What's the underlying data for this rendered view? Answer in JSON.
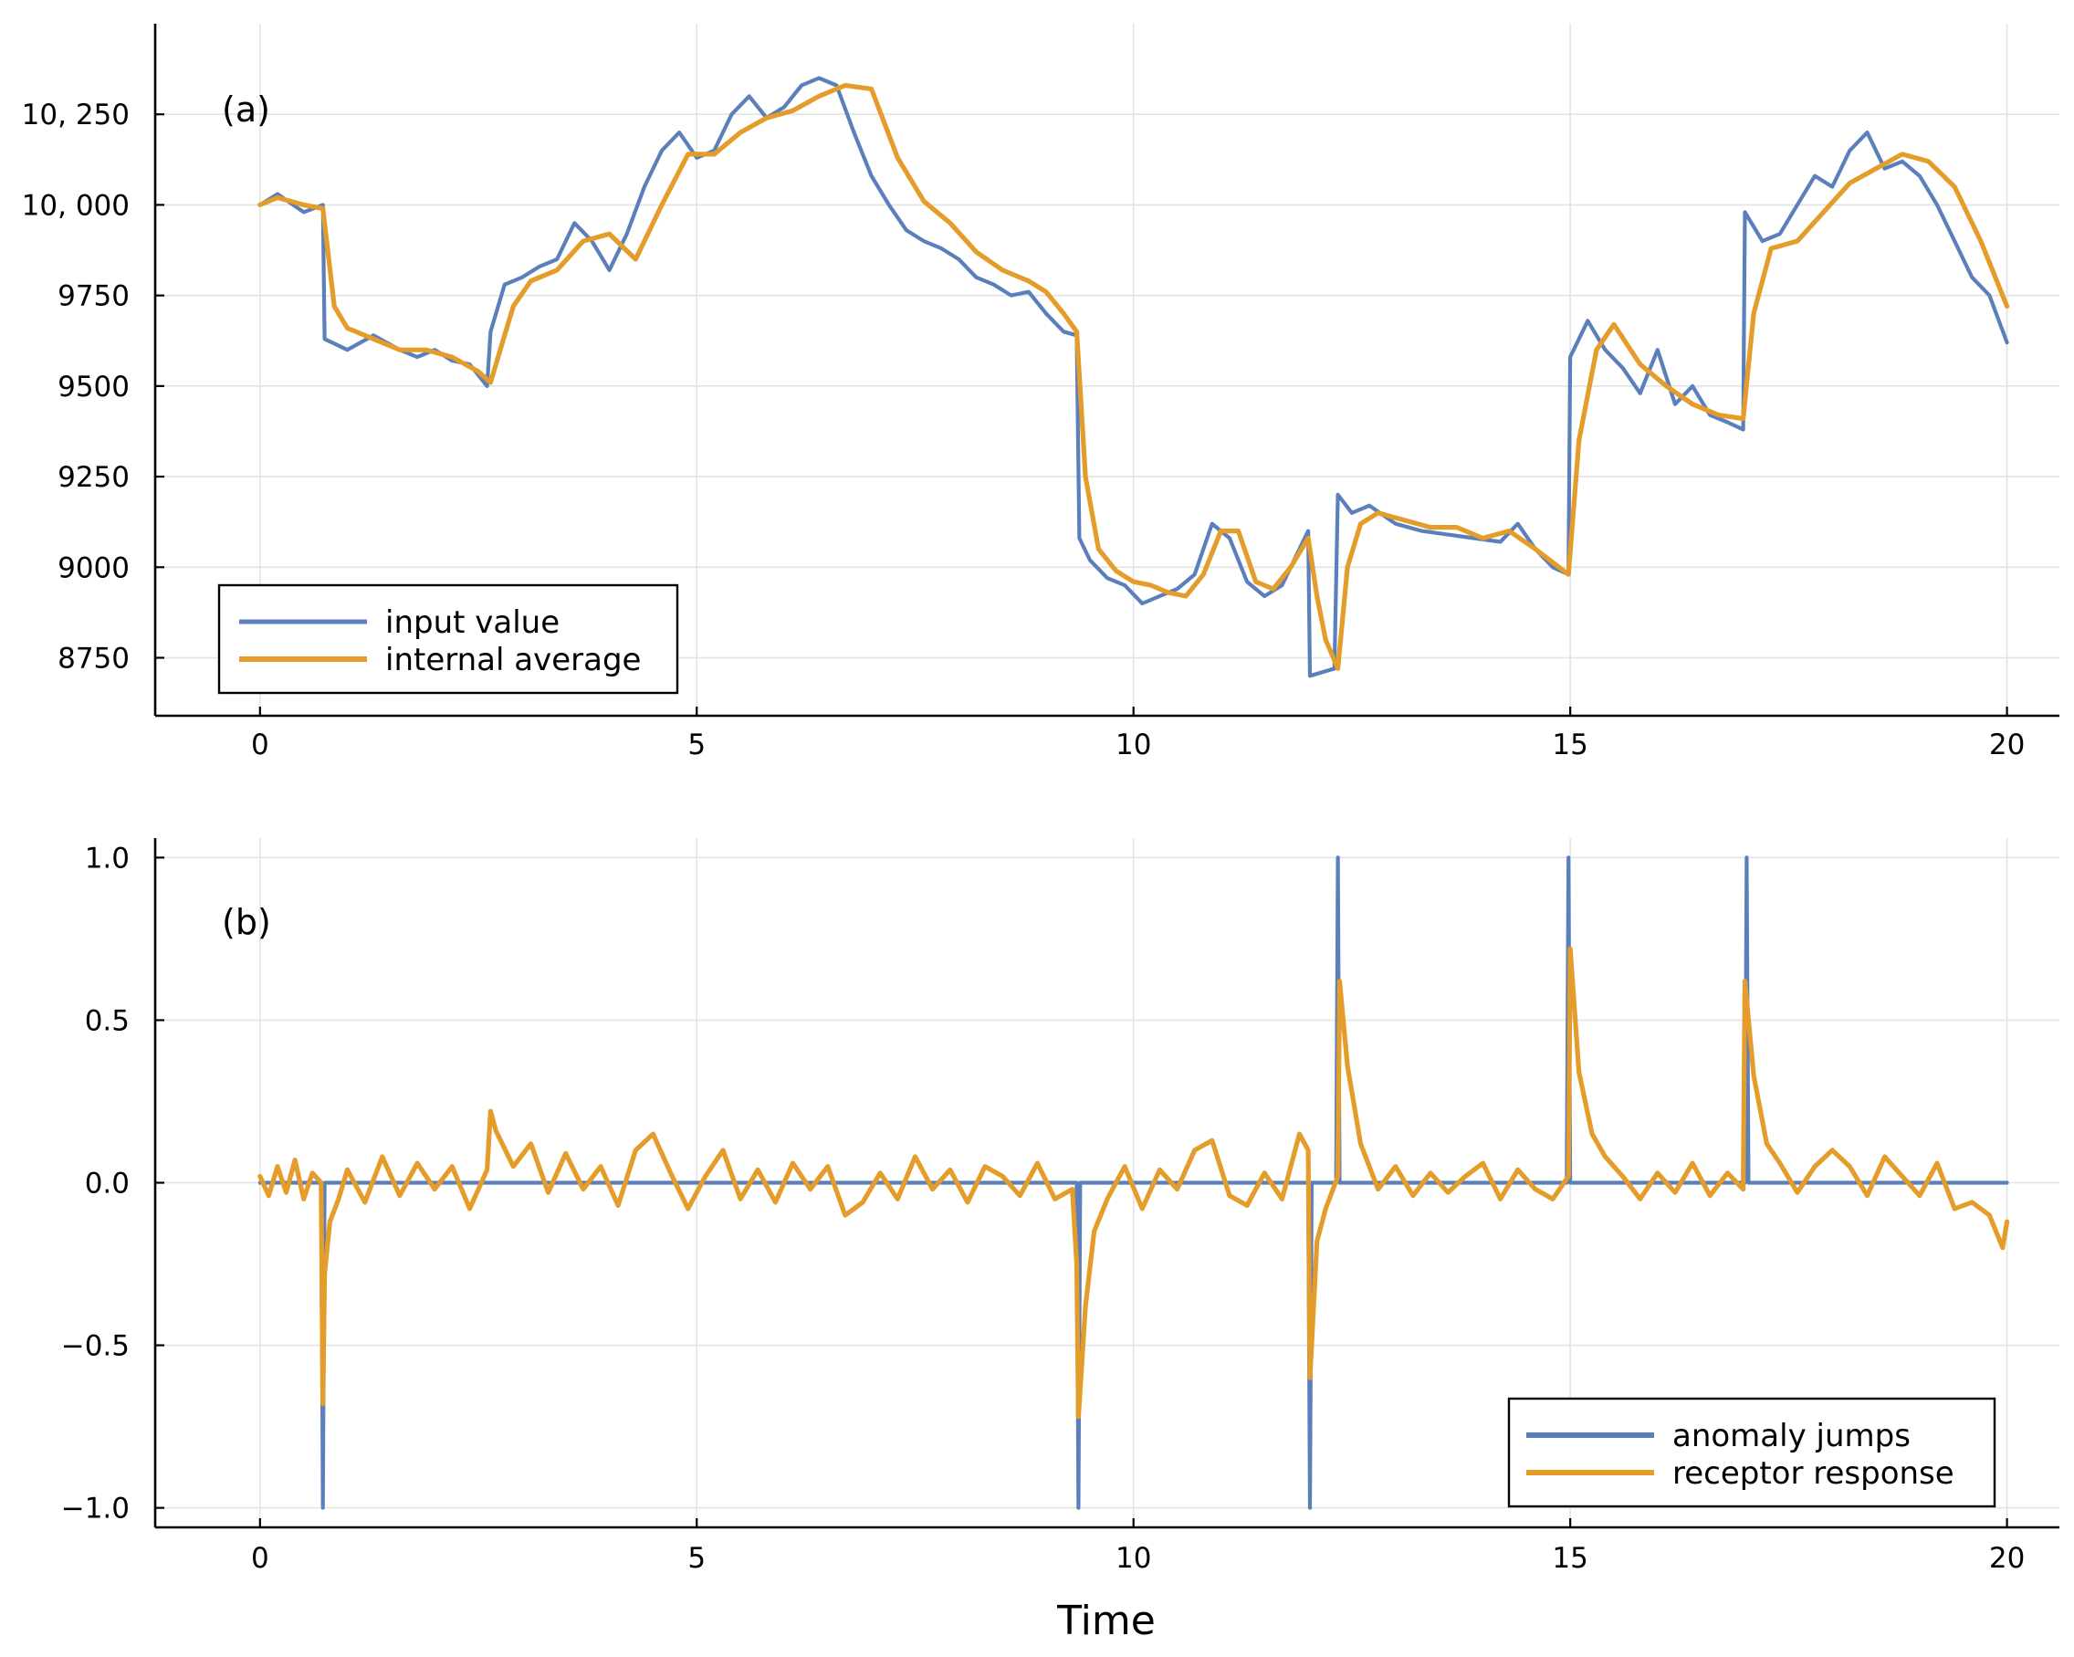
{
  "xlabel": "Time",
  "colors": {
    "blue": "#5b7fbb",
    "orange": "#e49c2a"
  },
  "chart_data": [
    {
      "type": "line",
      "panel_label": "(a)",
      "xlim": [
        -1.2,
        20.6
      ],
      "ylim": [
        8590,
        10500
      ],
      "x_ticks": [
        0,
        5,
        10,
        15,
        20
      ],
      "x_tick_labels": [
        "0",
        "5",
        "10",
        "15",
        "20"
      ],
      "y_ticks": [
        8750,
        9000,
        9250,
        9500,
        9750,
        10000,
        10250
      ],
      "y_tick_labels": [
        "8750",
        "9000",
        "9250",
        "9500",
        "9750",
        "10, 000",
        "10, 250"
      ],
      "legend_position": "bottom-left",
      "series": [
        {
          "name": "input value",
          "color": "#5b7fbb",
          "x": [
            0,
            0.2,
            0.5,
            0.72,
            0.74,
            1.0,
            1.3,
            1.6,
            1.8,
            2.0,
            2.2,
            2.4,
            2.6,
            2.64,
            2.8,
            3.0,
            3.2,
            3.4,
            3.6,
            3.8,
            4.0,
            4.2,
            4.4,
            4.6,
            4.8,
            5.0,
            5.2,
            5.4,
            5.6,
            5.8,
            6.0,
            6.2,
            6.4,
            6.6,
            6.8,
            7.0,
            7.2,
            7.4,
            7.6,
            7.8,
            8.0,
            8.2,
            8.4,
            8.6,
            8.8,
            9.0,
            9.2,
            9.35,
            9.38,
            9.5,
            9.7,
            9.9,
            10.1,
            10.3,
            10.5,
            10.7,
            10.9,
            11.1,
            11.3,
            11.5,
            11.7,
            11.9,
            12.0,
            12.02,
            12.3,
            12.34,
            12.5,
            12.7,
            13.0,
            13.3,
            13.6,
            13.9,
            14.2,
            14.4,
            14.6,
            14.8,
            14.98,
            15.0,
            15.2,
            15.4,
            15.6,
            15.8,
            16.0,
            16.2,
            16.4,
            16.6,
            16.8,
            16.98,
            17.0,
            17.2,
            17.4,
            17.6,
            17.8,
            18.0,
            18.2,
            18.4,
            18.6,
            18.8,
            19.0,
            19.2,
            19.4,
            19.6,
            19.8,
            20.0
          ],
          "y": [
            10000,
            10030,
            9980,
            10000,
            9630,
            9600,
            9640,
            9600,
            9580,
            9600,
            9570,
            9560,
            9500,
            9650,
            9780,
            9800,
            9830,
            9850,
            9950,
            9900,
            9820,
            9920,
            10050,
            10150,
            10200,
            10130,
            10150,
            10250,
            10300,
            10240,
            10270,
            10330,
            10350,
            10330,
            10200,
            10080,
            10000,
            9930,
            9900,
            9880,
            9850,
            9800,
            9780,
            9750,
            9760,
            9700,
            9650,
            9640,
            9080,
            9020,
            8970,
            8950,
            8900,
            8920,
            8940,
            8980,
            9120,
            9080,
            8960,
            8920,
            8950,
            9050,
            9100,
            8700,
            8720,
            9200,
            9150,
            9170,
            9120,
            9100,
            9090,
            9080,
            9070,
            9120,
            9050,
            9000,
            8980,
            9580,
            9680,
            9600,
            9550,
            9480,
            9600,
            9450,
            9500,
            9420,
            9400,
            9380,
            9980,
            9900,
            9920,
            10000,
            10080,
            10050,
            10150,
            10200,
            10100,
            10120,
            10080,
            10000,
            9900,
            9800,
            9750,
            9620
          ]
        },
        {
          "name": "internal average",
          "color": "#e49c2a",
          "x": [
            0,
            0.2,
            0.5,
            0.72,
            0.85,
            1.0,
            1.3,
            1.6,
            1.9,
            2.2,
            2.5,
            2.64,
            2.75,
            2.9,
            3.1,
            3.4,
            3.7,
            4.0,
            4.3,
            4.6,
            4.9,
            5.2,
            5.5,
            5.8,
            6.1,
            6.4,
            6.7,
            7.0,
            7.3,
            7.6,
            7.9,
            8.2,
            8.5,
            8.8,
            9.0,
            9.2,
            9.35,
            9.45,
            9.6,
            9.8,
            10.0,
            10.2,
            10.4,
            10.6,
            10.8,
            11.0,
            11.2,
            11.4,
            11.6,
            11.8,
            12.0,
            12.1,
            12.2,
            12.34,
            12.45,
            12.6,
            12.8,
            13.1,
            13.4,
            13.7,
            14.0,
            14.3,
            14.6,
            14.98,
            15.1,
            15.3,
            15.5,
            15.8,
            16.1,
            16.4,
            16.7,
            16.98,
            17.1,
            17.3,
            17.6,
            17.9,
            18.2,
            18.5,
            18.8,
            19.1,
            19.4,
            19.7,
            20.0
          ],
          "y": [
            10000,
            10020,
            10000,
            9990,
            9720,
            9660,
            9630,
            9600,
            9600,
            9580,
            9540,
            9510,
            9600,
            9720,
            9790,
            9820,
            9900,
            9920,
            9850,
            10000,
            10140,
            10140,
            10200,
            10240,
            10260,
            10300,
            10330,
            10320,
            10130,
            10010,
            9950,
            9870,
            9820,
            9790,
            9760,
            9700,
            9650,
            9250,
            9050,
            8990,
            8960,
            8950,
            8930,
            8920,
            8980,
            9100,
            9100,
            8960,
            8940,
            9000,
            9080,
            8920,
            8800,
            8720,
            9000,
            9120,
            9150,
            9130,
            9110,
            9110,
            9080,
            9100,
            9050,
            8980,
            9350,
            9600,
            9670,
            9560,
            9500,
            9450,
            9420,
            9410,
            9700,
            9880,
            9900,
            9980,
            10060,
            10100,
            10140,
            10120,
            10050,
            9900,
            9720
          ]
        }
      ]
    },
    {
      "type": "line",
      "panel_label": "(b)",
      "xlim": [
        -1.2,
        20.6
      ],
      "ylim": [
        -1.06,
        1.06
      ],
      "x_ticks": [
        0,
        5,
        10,
        15,
        20
      ],
      "x_tick_labels": [
        "0",
        "5",
        "10",
        "15",
        "20"
      ],
      "y_ticks": [
        -1.0,
        -0.5,
        0.0,
        0.5,
        1.0
      ],
      "y_tick_labels": [
        "−1.0",
        "−0.5",
        "0.0",
        "0.5",
        "1.0"
      ],
      "legend_position": "bottom-right",
      "series": [
        {
          "name": "anomaly jumps",
          "color": "#5b7fbb",
          "x": [
            0,
            0.7,
            0.72,
            0.74,
            9.35,
            9.37,
            9.39,
            12.0,
            12.02,
            12.04,
            12.32,
            12.34,
            12.36,
            14.96,
            14.98,
            15.0,
            17.0,
            17.02,
            17.04,
            20.0
          ],
          "y": [
            0,
            0,
            -1.0,
            0,
            0,
            -1.0,
            0,
            0,
            -1.0,
            0,
            0,
            1.0,
            0,
            0,
            1.0,
            0,
            0,
            1.0,
            0,
            0
          ]
        },
        {
          "name": "receptor response",
          "color": "#e49c2a",
          "x": [
            0,
            0.1,
            0.2,
            0.3,
            0.4,
            0.5,
            0.6,
            0.7,
            0.72,
            0.74,
            0.8,
            0.9,
            1.0,
            1.2,
            1.4,
            1.6,
            1.8,
            2.0,
            2.2,
            2.4,
            2.6,
            2.64,
            2.7,
            2.9,
            3.1,
            3.3,
            3.5,
            3.7,
            3.9,
            4.1,
            4.3,
            4.5,
            4.7,
            4.9,
            5.1,
            5.3,
            5.5,
            5.7,
            5.9,
            6.1,
            6.3,
            6.5,
            6.7,
            6.9,
            7.1,
            7.3,
            7.5,
            7.7,
            7.9,
            8.1,
            8.3,
            8.5,
            8.7,
            8.9,
            9.1,
            9.3,
            9.35,
            9.37,
            9.45,
            9.55,
            9.7,
            9.9,
            10.1,
            10.3,
            10.5,
            10.7,
            10.9,
            11.1,
            11.3,
            11.5,
            11.7,
            11.9,
            12.0,
            12.02,
            12.1,
            12.2,
            12.34,
            12.36,
            12.45,
            12.6,
            12.8,
            13.0,
            13.2,
            13.4,
            13.6,
            13.8,
            14.0,
            14.2,
            14.4,
            14.6,
            14.8,
            14.98,
            15.0,
            15.1,
            15.25,
            15.4,
            15.6,
            15.8,
            16.0,
            16.2,
            16.4,
            16.6,
            16.8,
            16.98,
            17.0,
            17.1,
            17.25,
            17.4,
            17.6,
            17.8,
            18.0,
            18.2,
            18.4,
            18.6,
            18.8,
            19.0,
            19.2,
            19.4,
            19.6,
            19.8,
            19.95,
            20.0
          ],
          "y": [
            0.02,
            -0.04,
            0.05,
            -0.03,
            0.07,
            -0.05,
            0.03,
            0.0,
            -0.68,
            -0.28,
            -0.12,
            -0.05,
            0.04,
            -0.06,
            0.08,
            -0.04,
            0.06,
            -0.02,
            0.05,
            -0.08,
            0.04,
            0.22,
            0.16,
            0.05,
            0.12,
            -0.03,
            0.09,
            -0.02,
            0.05,
            -0.07,
            0.1,
            0.15,
            0.03,
            -0.08,
            0.02,
            0.1,
            -0.05,
            0.04,
            -0.06,
            0.06,
            -0.02,
            0.05,
            -0.1,
            -0.06,
            0.03,
            -0.05,
            0.08,
            -0.02,
            0.04,
            -0.06,
            0.05,
            0.02,
            -0.04,
            0.06,
            -0.05,
            -0.02,
            -0.25,
            -0.72,
            -0.38,
            -0.15,
            -0.05,
            0.05,
            -0.08,
            0.04,
            -0.02,
            0.1,
            0.13,
            -0.04,
            -0.07,
            0.03,
            -0.05,
            0.15,
            0.1,
            -0.6,
            -0.18,
            -0.08,
            0.02,
            0.62,
            0.36,
            0.12,
            -0.02,
            0.05,
            -0.04,
            0.03,
            -0.03,
            0.02,
            0.06,
            -0.05,
            0.04,
            -0.02,
            -0.05,
            0.02,
            0.72,
            0.34,
            0.15,
            0.08,
            0.02,
            -0.05,
            0.03,
            -0.03,
            0.06,
            -0.04,
            0.03,
            -0.02,
            0.62,
            0.33,
            0.12,
            0.06,
            -0.03,
            0.05,
            0.1,
            0.05,
            -0.04,
            0.08,
            0.02,
            -0.04,
            0.06,
            -0.08,
            -0.06,
            -0.1,
            -0.2,
            -0.12
          ]
        }
      ]
    }
  ]
}
